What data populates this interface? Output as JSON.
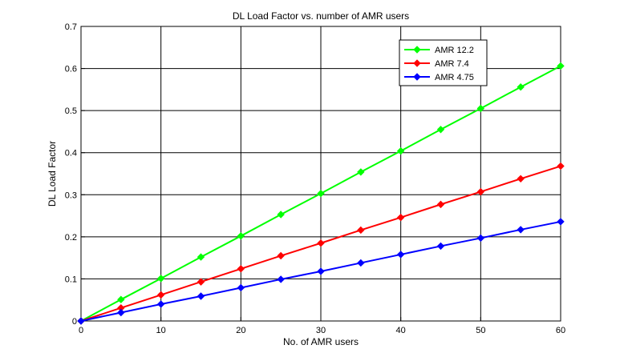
{
  "chart_data": {
    "type": "line",
    "title": "DL Load Factor vs. number of AMR users",
    "xlabel": "No. of AMR users",
    "ylabel": "DL Load Factor",
    "xlim": [
      0,
      60
    ],
    "ylim": [
      0,
      0.7
    ],
    "xticks": [
      0,
      10,
      20,
      30,
      40,
      50,
      60
    ],
    "yticks": [
      0,
      0.1,
      0.2,
      0.3,
      0.4,
      0.5,
      0.6,
      0.7
    ],
    "xtick_labels": [
      "0",
      "10",
      "20",
      "30",
      "40",
      "50",
      "60"
    ],
    "ytick_labels": [
      "0",
      "0.1",
      "0.2",
      "0.3",
      "0.4",
      "0.5",
      "0.6",
      "0.7"
    ],
    "grid": true,
    "legend_position": "top-right",
    "x": [
      0,
      5,
      10,
      15,
      20,
      25,
      30,
      35,
      40,
      45,
      50,
      55,
      60
    ],
    "series": [
      {
        "name": "AMR 12.2",
        "color": "#00ff00",
        "marker": "diamond",
        "values": [
          0,
          0.051,
          0.101,
          0.152,
          0.202,
          0.253,
          0.303,
          0.354,
          0.404,
          0.455,
          0.505,
          0.556,
          0.606
        ]
      },
      {
        "name": "AMR 7.4",
        "color": "#ff0000",
        "marker": "diamond",
        "values": [
          0,
          0.031,
          0.062,
          0.093,
          0.124,
          0.155,
          0.185,
          0.216,
          0.246,
          0.277,
          0.307,
          0.338,
          0.368
        ]
      },
      {
        "name": "AMR 4.75",
        "color": "#0000ff",
        "marker": "diamond",
        "values": [
          0,
          0.02,
          0.04,
          0.059,
          0.079,
          0.099,
          0.118,
          0.138,
          0.158,
          0.178,
          0.197,
          0.217,
          0.236
        ]
      }
    ]
  }
}
